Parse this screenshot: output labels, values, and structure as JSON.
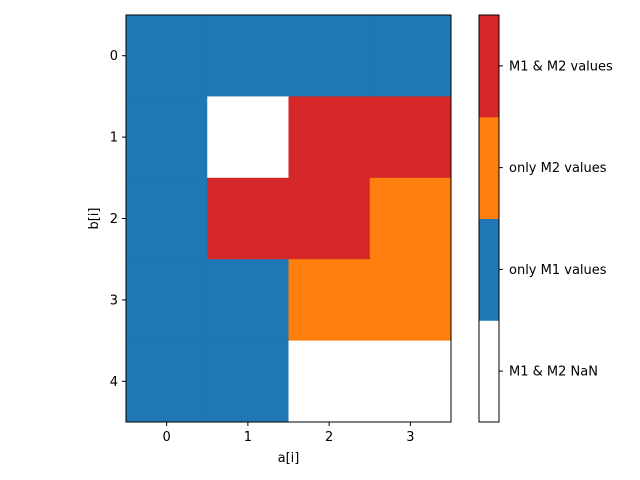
{
  "chart_data": {
    "type": "heatmap",
    "title": "",
    "xlabel": "a[i]",
    "ylabel": "b[i]",
    "x_ticks": [
      "0",
      "1",
      "2",
      "3"
    ],
    "y_ticks": [
      "0",
      "1",
      "2",
      "3",
      "4"
    ],
    "grid": false,
    "categories": [
      {
        "code": 0,
        "label": "M1 & M2 NaN",
        "color": "#ffffff"
      },
      {
        "code": 1,
        "label": "only M1 values",
        "color": "#1f77b4"
      },
      {
        "code": 2,
        "label": "only M2 values",
        "color": "#ff7f0e"
      },
      {
        "code": 3,
        "label": "M1 & M2 values",
        "color": "#d62728"
      }
    ],
    "values": [
      [
        1,
        1,
        1,
        1
      ],
      [
        1,
        0,
        3,
        3
      ],
      [
        1,
        3,
        3,
        2
      ],
      [
        1,
        1,
        2,
        2
      ],
      [
        1,
        1,
        0,
        0
      ]
    ],
    "colorbar_position": "right"
  }
}
